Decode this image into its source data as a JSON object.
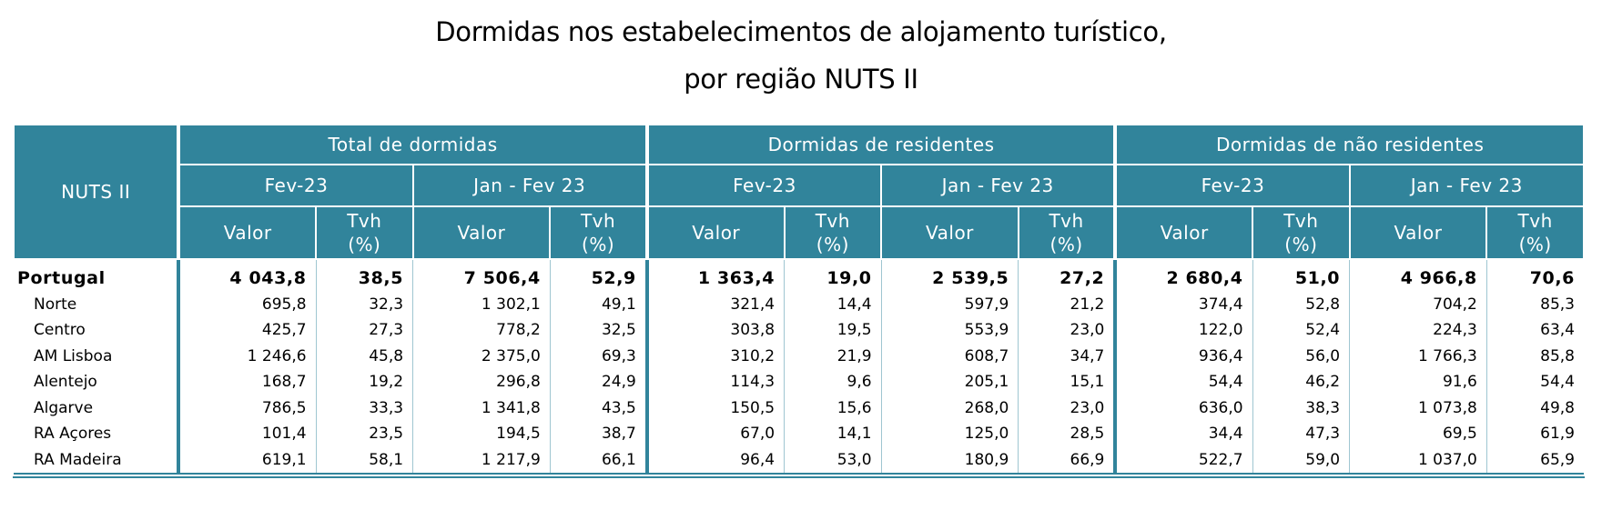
{
  "title": {
    "line1": "Dormidas nos estabelecimentos de alojamento turístico,",
    "line2": "por região NUTS II"
  },
  "header": {
    "nuts": "NUTS II",
    "groups": [
      "Total de dormidas",
      "Dormidas de residentes",
      "Dormidas de não residentes"
    ],
    "periods": [
      "Fev-23",
      "Jan - Fev 23",
      "Fev-23",
      "Jan - Fev 23",
      "Fev-23",
      "Jan - Fev 23"
    ],
    "valor": "Valor",
    "tvh_line1": "Tvh",
    "tvh_line2": "(%)"
  },
  "rows": [
    {
      "name": "Portugal",
      "values": [
        "4 043,8",
        "38,5",
        "7 506,4",
        "52,9",
        "1 363,4",
        "19,0",
        "2 539,5",
        "27,2",
        "2 680,4",
        "51,0",
        "4 966,8",
        "70,6"
      ]
    },
    {
      "name": "Norte",
      "values": [
        "695,8",
        "32,3",
        "1 302,1",
        "49,1",
        "321,4",
        "14,4",
        "597,9",
        "21,2",
        "374,4",
        "52,8",
        "704,2",
        "85,3"
      ]
    },
    {
      "name": "Centro",
      "values": [
        "425,7",
        "27,3",
        "778,2",
        "32,5",
        "303,8",
        "19,5",
        "553,9",
        "23,0",
        "122,0",
        "52,4",
        "224,3",
        "63,4"
      ]
    },
    {
      "name": "AM Lisboa",
      "values": [
        "1 246,6",
        "45,8",
        "2 375,0",
        "69,3",
        "310,2",
        "21,9",
        "608,7",
        "34,7",
        "936,4",
        "56,0",
        "1 766,3",
        "85,8"
      ]
    },
    {
      "name": "Alentejo",
      "values": [
        "168,7",
        "19,2",
        "296,8",
        "24,9",
        "114,3",
        "9,6",
        "205,1",
        "15,1",
        "54,4",
        "46,2",
        "91,6",
        "54,4"
      ]
    },
    {
      "name": "Algarve",
      "values": [
        "786,5",
        "33,3",
        "1 341,8",
        "43,5",
        "150,5",
        "15,6",
        "268,0",
        "23,0",
        "636,0",
        "38,3",
        "1 073,8",
        "49,8"
      ]
    },
    {
      "name": "RA Açores",
      "values": [
        "101,4",
        "23,5",
        "194,5",
        "38,7",
        "67,0",
        "14,1",
        "125,0",
        "28,5",
        "34,4",
        "47,3",
        "69,5",
        "61,9"
      ]
    },
    {
      "name": "RA Madeira",
      "values": [
        "619,1",
        "58,1",
        "1 217,9",
        "66,1",
        "96,4",
        "53,0",
        "180,9",
        "66,9",
        "522,7",
        "59,0",
        "1 037,0",
        "65,9"
      ]
    }
  ]
}
